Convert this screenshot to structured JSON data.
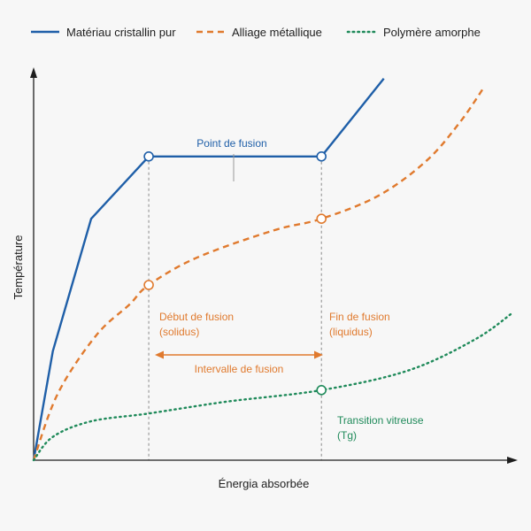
{
  "chart_data": {
    "type": "line",
    "title": "",
    "xlabel": "Énergia absorbée",
    "ylabel": "Température",
    "xlim": [
      0,
      100
    ],
    "ylim": [
      0,
      100
    ],
    "grid": false,
    "legend": "top",
    "series": [
      {
        "name": "Matériau cristallin pur",
        "color": "#1f5fa8",
        "style": "solid",
        "points": [
          [
            0,
            0
          ],
          [
            4,
            28
          ],
          [
            12,
            62
          ],
          [
            24,
            78
          ],
          [
            60,
            78
          ],
          [
            73,
            98
          ]
        ]
      },
      {
        "name": "Alliage métallique",
        "color": "#e07a2e",
        "style": "dashed",
        "points": [
          [
            0,
            0
          ],
          [
            5,
            17
          ],
          [
            13,
            32
          ],
          [
            20,
            40
          ],
          [
            24,
            45
          ],
          [
            34,
            52
          ],
          [
            50,
            59
          ],
          [
            60,
            62
          ],
          [
            72,
            68
          ],
          [
            82,
            77
          ],
          [
            89,
            87
          ],
          [
            94,
            96
          ]
        ]
      },
      {
        "name": "Polymère amorphe",
        "color": "#1f8a5a",
        "style": "dotted",
        "points": [
          [
            0,
            0
          ],
          [
            4,
            6
          ],
          [
            12,
            10
          ],
          [
            24,
            12
          ],
          [
            40,
            15
          ],
          [
            60,
            18
          ],
          [
            78,
            23
          ],
          [
            92,
            31
          ],
          [
            100,
            38
          ]
        ]
      }
    ],
    "markers": [
      {
        "series": 0,
        "x": 24,
        "y": 78
      },
      {
        "series": 0,
        "x": 60,
        "y": 78
      },
      {
        "series": 1,
        "x": 24,
        "y": 45
      },
      {
        "series": 1,
        "x": 60,
        "y": 62
      },
      {
        "series": 2,
        "x": 60,
        "y": 18
      }
    ],
    "guides": [
      24,
      60
    ],
    "annotations": {
      "point_fusion": "Point de fusion",
      "debut_fusion_1": "Début de fusion",
      "debut_fusion_2": "(solidus)",
      "fin_fusion_1": "Fin de fusion",
      "fin_fusion_2": "(liquidus)",
      "intervalle": "Intervalle de fusion",
      "transition_1": "Transition vitreuse",
      "transition_2": "(Tg)"
    }
  }
}
